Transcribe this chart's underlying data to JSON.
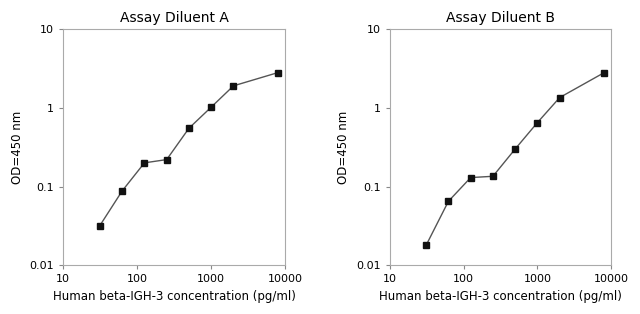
{
  "panel_A": {
    "title": "Assay Diluent A",
    "x": [
      31.25,
      62.5,
      125,
      250,
      500,
      1000,
      2000,
      8000
    ],
    "y": [
      0.032,
      0.088,
      0.2,
      0.22,
      0.55,
      1.02,
      1.9,
      2.8
    ],
    "xlabel": "Human beta-IGH-3 concentration (pg/ml)",
    "ylabel": "OD=450 nm",
    "xlim": [
      10,
      10000
    ],
    "ylim": [
      0.01,
      10
    ]
  },
  "panel_B": {
    "title": "Assay Diluent B",
    "x": [
      31.25,
      62.5,
      125,
      250,
      500,
      1000,
      2000,
      8000
    ],
    "y": [
      0.018,
      0.065,
      0.13,
      0.135,
      0.3,
      0.65,
      1.35,
      2.8
    ],
    "xlabel": "Human beta-IGH-3 concentration (pg/ml)",
    "ylabel": "OD=450 nm",
    "xlim": [
      10,
      10000
    ],
    "ylim": [
      0.01,
      10
    ]
  },
  "line_color": "#555555",
  "marker_color": "#111111",
  "bg_color": "#ffffff",
  "axes_bg": "#ffffff",
  "title_fontsize": 10,
  "label_fontsize": 8.5,
  "tick_fontsize": 8,
  "yticks": [
    0.01,
    0.1,
    1,
    10
  ],
  "ytick_labels": [
    "0.01",
    "0.1",
    "1",
    "10"
  ],
  "xticks": [
    10,
    100,
    1000,
    10000
  ],
  "xtick_labels": [
    "10",
    "100",
    "1000",
    "10000"
  ]
}
